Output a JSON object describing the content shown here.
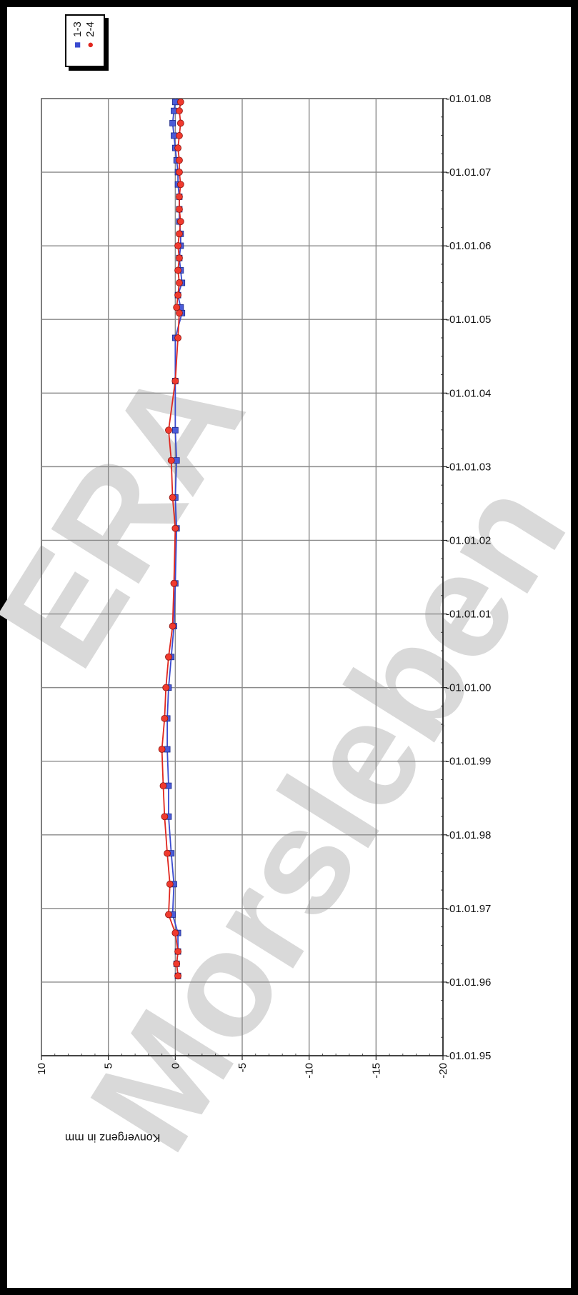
{
  "chart_data": {
    "type": "line",
    "orientation": "time-vertical-down",
    "xlabel": "Konvergenz in mm",
    "ylabel": "",
    "title": "",
    "x_ticks": [
      10,
      5,
      0,
      -5,
      -10,
      -15,
      -20
    ],
    "xlim": [
      10,
      -20
    ],
    "y_ticks": [
      "01.01.95",
      "01.01.96",
      "01.01.97",
      "01.01.98",
      "01.01.99",
      "01.01.00",
      "01.01.01",
      "01.01.02",
      "01.01.03",
      "01.01.04",
      "01.01.05",
      "01.01.06",
      "01.01.07",
      "01.01.08"
    ],
    "ylim": [
      "1995-01-01",
      "2008-01-01"
    ],
    "grid": true,
    "legend_position": "top-left",
    "watermark": [
      "ERA",
      "Morsleben"
    ],
    "colors": {
      "series_1": "#3a4bd0",
      "series_2": "#e0261e"
    },
    "series": [
      {
        "name": "1-3",
        "marker": "square",
        "points": [
          [
            "1996-02-01",
            -0.2
          ],
          [
            "1996-04-01",
            -0.1
          ],
          [
            "1996-06-01",
            -0.2
          ],
          [
            "1996-09-01",
            -0.2
          ],
          [
            "1996-12-01",
            0.2
          ],
          [
            "1997-05-01",
            0.1
          ],
          [
            "1997-10-01",
            0.3
          ],
          [
            "1998-04-01",
            0.5
          ],
          [
            "1998-09-01",
            0.5
          ],
          [
            "1999-03-01",
            0.6
          ],
          [
            "1999-08-01",
            0.6
          ],
          [
            "2000-01-01",
            0.5
          ],
          [
            "2000-06-01",
            0.3
          ],
          [
            "2000-11-01",
            0.1
          ],
          [
            "2001-06-01",
            0.0
          ],
          [
            "2002-03-01",
            -0.1
          ],
          [
            "2002-08-01",
            0.0
          ],
          [
            "2003-02-01",
            -0.1
          ],
          [
            "2003-07-01",
            0.0
          ],
          [
            "2004-03-01",
            0.0
          ],
          [
            "2004-10-01",
            0.0
          ],
          [
            "2005-02-01",
            -0.5
          ],
          [
            "2005-03-01",
            -0.4
          ],
          [
            "2005-05-01",
            -0.2
          ],
          [
            "2005-07-01",
            -0.5
          ],
          [
            "2005-09-01",
            -0.4
          ],
          [
            "2005-11-01",
            -0.3
          ],
          [
            "2006-01-01",
            -0.4
          ],
          [
            "2006-03-01",
            -0.4
          ],
          [
            "2006-05-01",
            -0.3
          ],
          [
            "2006-07-01",
            -0.3
          ],
          [
            "2006-09-01",
            -0.3
          ],
          [
            "2006-11-01",
            -0.2
          ],
          [
            "2007-01-01",
            -0.2
          ],
          [
            "2007-03-01",
            -0.1
          ],
          [
            "2007-05-01",
            0.0
          ],
          [
            "2007-07-01",
            0.1
          ],
          [
            "2007-09-01",
            0.2
          ],
          [
            "2007-11-01",
            0.1
          ],
          [
            "2007-12-15",
            0.0
          ]
        ]
      },
      {
        "name": "2-4",
        "marker": "circle",
        "points": [
          [
            "1996-02-01",
            -0.2
          ],
          [
            "1996-04-01",
            -0.1
          ],
          [
            "1996-06-01",
            -0.2
          ],
          [
            "1996-09-01",
            0.0
          ],
          [
            "1996-12-01",
            0.5
          ],
          [
            "1997-05-01",
            0.4
          ],
          [
            "1997-10-01",
            0.6
          ],
          [
            "1998-04-01",
            0.8
          ],
          [
            "1998-09-01",
            0.9
          ],
          [
            "1999-03-01",
            1.0
          ],
          [
            "1999-08-01",
            0.8
          ],
          [
            "2000-01-01",
            0.7
          ],
          [
            "2000-06-01",
            0.5
          ],
          [
            "2000-11-01",
            0.2
          ],
          [
            "2001-06-01",
            0.1
          ],
          [
            "2002-03-01",
            0.0
          ],
          [
            "2002-08-01",
            0.2
          ],
          [
            "2003-02-01",
            0.3
          ],
          [
            "2003-07-01",
            0.5
          ],
          [
            "2004-03-01",
            0.0
          ],
          [
            "2004-10-01",
            -0.2
          ],
          [
            "2005-02-01",
            -0.3
          ],
          [
            "2005-03-01",
            -0.1
          ],
          [
            "2005-05-01",
            -0.2
          ],
          [
            "2005-07-01",
            -0.3
          ],
          [
            "2005-09-01",
            -0.2
          ],
          [
            "2005-11-01",
            -0.3
          ],
          [
            "2006-01-01",
            -0.2
          ],
          [
            "2006-03-01",
            -0.3
          ],
          [
            "2006-05-01",
            -0.4
          ],
          [
            "2006-07-01",
            -0.3
          ],
          [
            "2006-09-01",
            -0.3
          ],
          [
            "2006-11-01",
            -0.4
          ],
          [
            "2007-01-01",
            -0.3
          ],
          [
            "2007-03-01",
            -0.3
          ],
          [
            "2007-05-01",
            -0.2
          ],
          [
            "2007-07-01",
            -0.3
          ],
          [
            "2007-09-01",
            -0.4
          ],
          [
            "2007-11-01",
            -0.3
          ],
          [
            "2007-12-15",
            -0.4
          ]
        ]
      }
    ]
  }
}
